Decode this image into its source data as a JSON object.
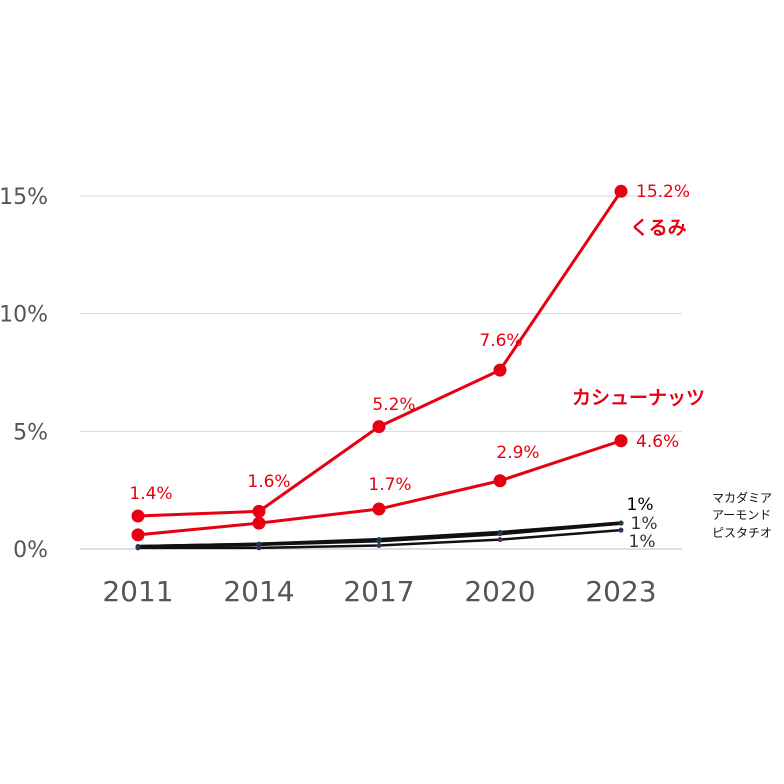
{
  "chart_data": {
    "type": "line",
    "x": [
      "2011",
      "2014",
      "2017",
      "2020",
      "2023"
    ],
    "ylim": [
      0,
      15
    ],
    "yticks": [
      "0%",
      "5%",
      "10%",
      "15%"
    ],
    "grid": true,
    "series": [
      {
        "name": "くるみ",
        "values": [
          1.4,
          1.6,
          5.2,
          7.6,
          15.2
        ],
        "labels": [
          "1.4%",
          "1.6%",
          "5.2%",
          "7.6%",
          "15.2%"
        ],
        "color": "#e60012"
      },
      {
        "name": "カシューナッツ",
        "values": [
          0.6,
          1.1,
          1.7,
          2.9,
          4.6
        ],
        "labels": [
          "",
          "",
          "1.7%",
          "2.9%",
          "4.6%"
        ],
        "color": "#e60012"
      },
      {
        "name": "マカダミア",
        "values": [
          0.1,
          0.2,
          0.4,
          0.7,
          1.1
        ],
        "labels": [
          "",
          "",
          "",
          "",
          "1%"
        ],
        "color": "#111111"
      },
      {
        "name": "アーモンド",
        "values": [
          0.1,
          0.2,
          0.35,
          0.65,
          1.1
        ],
        "labels": [
          "",
          "",
          "",
          "",
          "1%"
        ],
        "color": "#111111"
      },
      {
        "name": "ピスタチオ",
        "values": [
          0.05,
          0.05,
          0.15,
          0.4,
          0.8
        ],
        "labels": [
          "",
          "",
          "",
          "",
          "1%"
        ],
        "color": "#111111"
      }
    ]
  }
}
